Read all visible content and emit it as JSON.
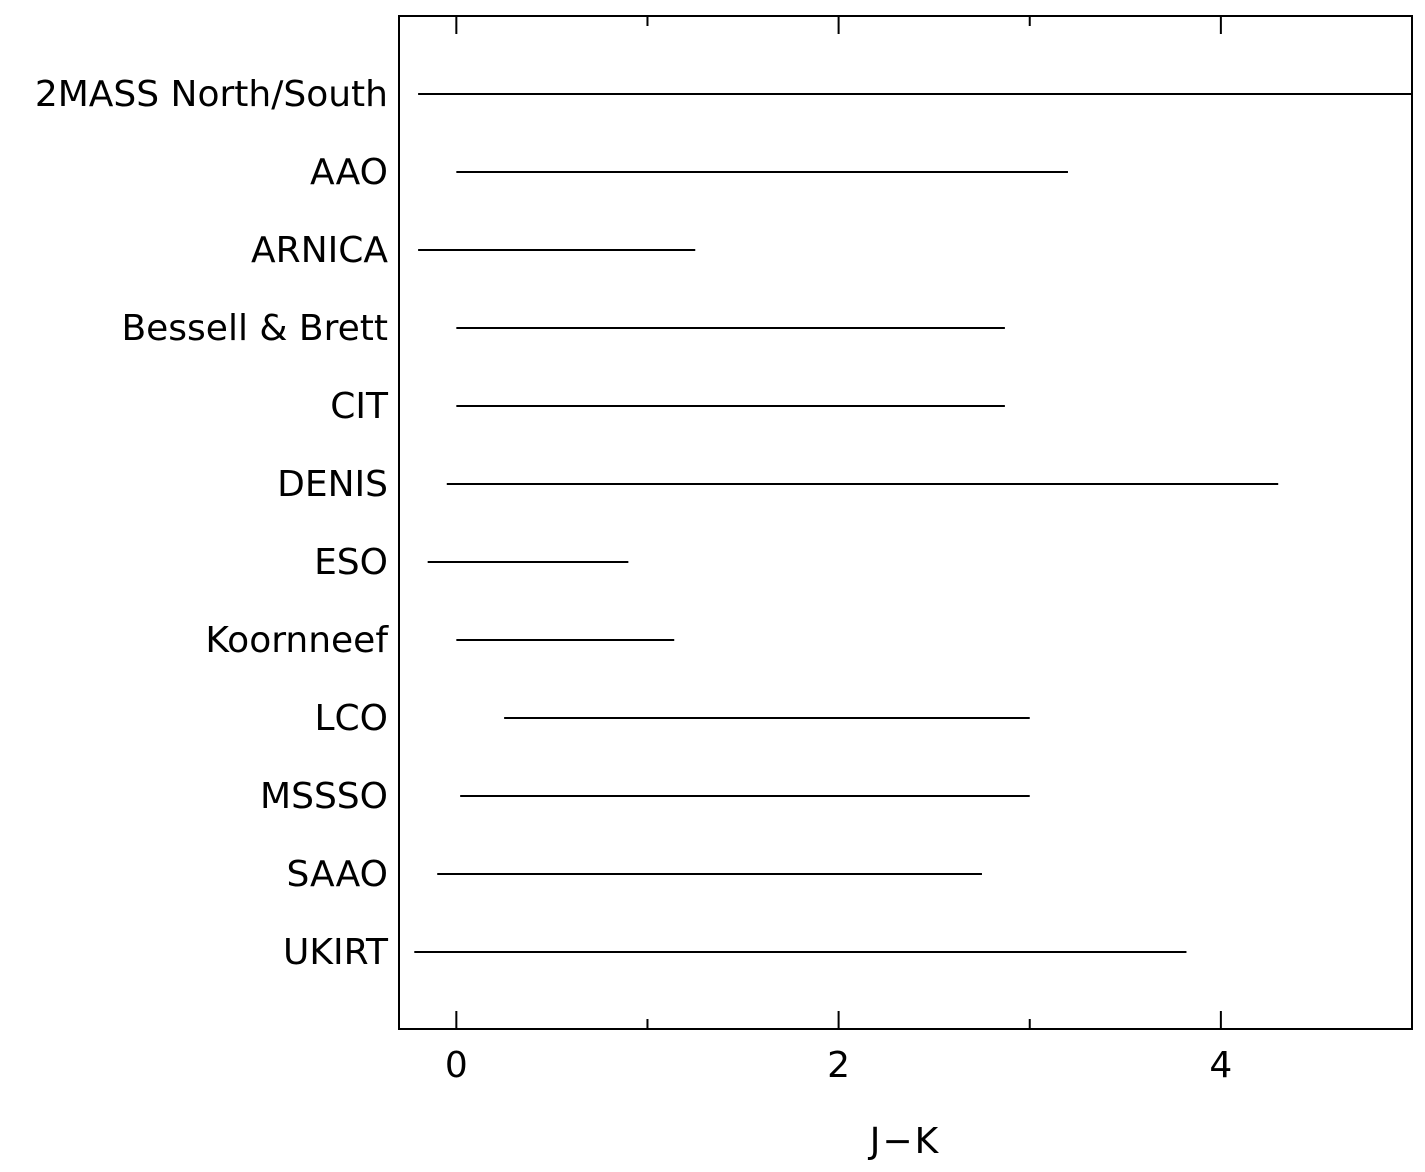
{
  "chart_data": {
    "type": "range",
    "xlabel": "J−K",
    "xlim": [
      -0.3,
      5.0
    ],
    "xticks_major": [
      0,
      2,
      4
    ],
    "xticks_minor": [
      1,
      3
    ],
    "grid": false,
    "categories": [
      "2MASS North/South",
      "AAO",
      "ARNICA",
      "Bessell & Brett",
      "CIT",
      "DENIS",
      "ESO",
      "Koornneef",
      "LCO",
      "MSSSO",
      "SAAO",
      "UKIRT"
    ],
    "ranges": [
      [
        -0.2,
        5.0
      ],
      [
        0.0,
        3.2
      ],
      [
        -0.2,
        1.25
      ],
      [
        0.0,
        2.87
      ],
      [
        0.0,
        2.87
      ],
      [
        -0.05,
        4.3
      ],
      [
        -0.15,
        0.9
      ],
      [
        0.0,
        1.14
      ],
      [
        0.25,
        3.0
      ],
      [
        0.02,
        3.0
      ],
      [
        -0.1,
        2.75
      ],
      [
        -0.22,
        3.82
      ]
    ]
  }
}
